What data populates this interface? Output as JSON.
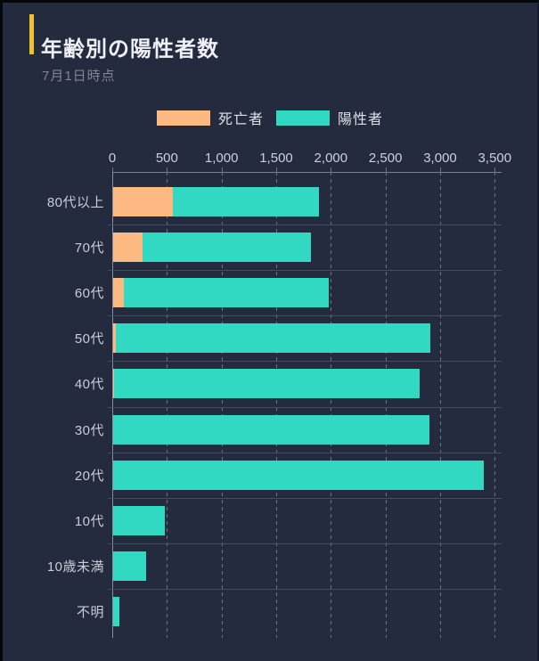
{
  "header": {
    "title": "年齢別の陽性者数",
    "subtitle": "7月1日時点",
    "accent_color": "#efc12f"
  },
  "legend": {
    "items": [
      {
        "label": "死亡者",
        "color": "#fcba82"
      },
      {
        "label": "陽性者",
        "color": "#31d8c2"
      }
    ]
  },
  "chart_data": {
    "type": "bar",
    "orientation": "horizontal",
    "stacked": true,
    "categories": [
      "80代以上",
      "70代",
      "60代",
      "50代",
      "40代",
      "30代",
      "20代",
      "10代",
      "10歳未満",
      "不明"
    ],
    "series": [
      {
        "name": "死亡者",
        "color": "#fcba82",
        "values": [
          550,
          270,
          100,
          25,
          10,
          0,
          0,
          0,
          0,
          0
        ]
      },
      {
        "name": "陽性者",
        "color": "#31d8c2",
        "values": [
          1330,
          1540,
          1870,
          2875,
          2795,
          2890,
          3390,
          470,
          305,
          55
        ]
      }
    ],
    "x_axis": {
      "position": "top",
      "max": 3500,
      "gridlines": "dashed",
      "ticks": [
        {
          "v": 0,
          "label": "0"
        },
        {
          "v": 500,
          "label": "500"
        },
        {
          "v": 1000,
          "label": "1,000"
        },
        {
          "v": 1500,
          "label": "1,500"
        },
        {
          "v": 2000,
          "label": "2,000"
        },
        {
          "v": 2500,
          "label": "2,500"
        },
        {
          "v": 3000,
          "label": "3,000"
        },
        {
          "v": 3500,
          "label": "3,500"
        }
      ]
    },
    "colors": {
      "background": "#252b3e",
      "grid_dashed": "#6d7486",
      "row_line": "#454c60",
      "axis_line": "#8a909e"
    },
    "legend_position": "top"
  }
}
